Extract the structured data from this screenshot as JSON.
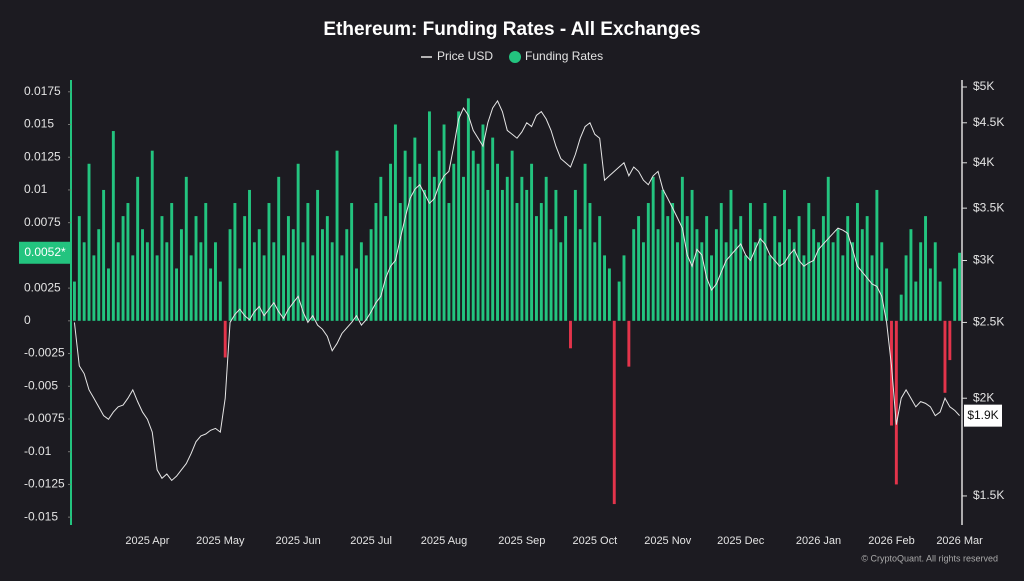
{
  "chart_data": {
    "type": "combo",
    "title": "Ethereum: Funding Rates - All Exchanges",
    "footer": "© CryptoQuant. All rights reserved",
    "categories": [
      null,
      null,
      null,
      null,
      null,
      null,
      null,
      null,
      null,
      null,
      null,
      null,
      null,
      null,
      null,
      "2025 Apr",
      null,
      null,
      null,
      null,
      null,
      null,
      null,
      null,
      null,
      null,
      null,
      null,
      null,
      null,
      "2025 May",
      null,
      null,
      null,
      null,
      null,
      null,
      null,
      null,
      null,
      null,
      null,
      null,
      null,
      null,
      null,
      "2025 Jun",
      null,
      null,
      null,
      null,
      null,
      null,
      null,
      null,
      null,
      null,
      null,
      null,
      null,
      null,
      "2025 Jul",
      null,
      null,
      null,
      null,
      null,
      null,
      null,
      null,
      null,
      null,
      null,
      null,
      null,
      null,
      "2025 Aug",
      null,
      null,
      null,
      null,
      null,
      null,
      null,
      null,
      null,
      null,
      null,
      null,
      null,
      null,
      null,
      "2025 Sep",
      null,
      null,
      null,
      null,
      null,
      null,
      null,
      null,
      null,
      null,
      null,
      null,
      null,
      null,
      "2025 Oct",
      null,
      null,
      null,
      null,
      null,
      null,
      null,
      null,
      null,
      null,
      null,
      null,
      null,
      null,
      "2025 Nov",
      null,
      null,
      null,
      null,
      null,
      null,
      null,
      null,
      null,
      null,
      null,
      null,
      null,
      null,
      "2025 Dec",
      null,
      null,
      null,
      null,
      null,
      null,
      null,
      null,
      null,
      null,
      null,
      null,
      null,
      null,
      null,
      "2026 Jan",
      null,
      null,
      null,
      null,
      null,
      null,
      null,
      null,
      null,
      null,
      null,
      null,
      null,
      null,
      "2026 Feb",
      null,
      null,
      null,
      null,
      null,
      null,
      null,
      null,
      null,
      null,
      null,
      null,
      null,
      "2026 Mar"
    ],
    "series": [
      {
        "name": "Price USD",
        "type": "line",
        "axis": "y2",
        "color": "#e6e6e6",
        "values": [
          2500,
          2200,
          2150,
          2050,
          2000,
          1950,
          1900,
          1880,
          1920,
          1950,
          1960,
          2000,
          2050,
          1980,
          1920,
          1880,
          1810,
          1620,
          1580,
          1600,
          1570,
          1590,
          1620,
          1650,
          1700,
          1760,
          1790,
          1800,
          1820,
          1830,
          1810,
          2000,
          2500,
          2560,
          2600,
          2550,
          2520,
          2580,
          2620,
          2550,
          2600,
          2650,
          2580,
          2530,
          2600,
          2650,
          2700,
          2580,
          2500,
          2550,
          2480,
          2450,
          2400,
          2300,
          2350,
          2420,
          2460,
          2500,
          2550,
          2480,
          2520,
          2580,
          2650,
          2700,
          2850,
          2950,
          3000,
          3200,
          3400,
          3600,
          3700,
          3750,
          3650,
          3550,
          3600,
          3750,
          3850,
          3900,
          4200,
          4550,
          4700,
          4600,
          4400,
          4300,
          4200,
          4500,
          4700,
          4800,
          4650,
          4400,
          4350,
          4300,
          4380,
          4500,
          4450,
          4600,
          4650,
          4550,
          4400,
          4200,
          4050,
          4000,
          3950,
          4100,
          4300,
          4450,
          4500,
          4350,
          4300,
          3800,
          3850,
          3900,
          3950,
          4000,
          3850,
          3950,
          3900,
          3800,
          3750,
          3850,
          3900,
          3700,
          3600,
          3500,
          3400,
          3300,
          3050,
          2950,
          3100,
          3050,
          2850,
          2750,
          2800,
          2900,
          3000,
          3050,
          3100,
          3150,
          3050,
          3000,
          3100,
          3200,
          3150,
          3050,
          3000,
          2950,
          2980,
          3050,
          3100,
          3000,
          2950,
          2980,
          3000,
          3100,
          3150,
          3200,
          3250,
          3300,
          3280,
          3250,
          3100,
          2950,
          2900,
          2850,
          2800,
          2780,
          2700,
          2500,
          2200,
          1850,
          2000,
          2050,
          2000,
          1950,
          1980,
          1970,
          1950,
          1900,
          1920,
          2000,
          1950,
          1930,
          1900
        ]
      },
      {
        "name": "Funding Rates",
        "type": "bar",
        "color": "#23c47f",
        "negative_color": "#e3344b",
        "values": [
          0.003,
          0.008,
          0.006,
          0.012,
          0.005,
          0.007,
          0.01,
          0.004,
          0.0145,
          0.006,
          0.008,
          0.009,
          0.005,
          0.011,
          0.007,
          0.006,
          0.013,
          0.005,
          0.008,
          0.006,
          0.009,
          0.004,
          0.007,
          0.011,
          0.005,
          0.008,
          0.006,
          0.009,
          0.004,
          0.006,
          0.003,
          -0.0028,
          0.007,
          0.009,
          0.004,
          0.008,
          0.01,
          0.006,
          0.007,
          0.005,
          0.009,
          0.006,
          0.011,
          0.005,
          0.008,
          0.007,
          0.012,
          0.006,
          0.009,
          0.005,
          0.01,
          0.007,
          0.008,
          0.006,
          0.013,
          0.005,
          0.007,
          0.009,
          0.004,
          0.006,
          0.005,
          0.007,
          0.009,
          0.011,
          0.008,
          0.012,
          0.015,
          0.009,
          0.013,
          0.011,
          0.014,
          0.012,
          0.01,
          0.016,
          0.011,
          0.013,
          0.015,
          0.009,
          0.012,
          0.016,
          0.011,
          0.017,
          0.013,
          0.012,
          0.015,
          0.01,
          0.014,
          0.012,
          0.01,
          0.011,
          0.013,
          0.009,
          0.011,
          0.01,
          0.012,
          0.008,
          0.009,
          0.011,
          0.007,
          0.01,
          0.006,
          0.008,
          -0.0021,
          0.01,
          0.007,
          0.012,
          0.009,
          0.006,
          0.008,
          0.005,
          0.004,
          -0.014,
          0.003,
          0.005,
          -0.0035,
          0.007,
          0.008,
          0.006,
          0.009,
          0.011,
          0.007,
          0.01,
          0.008,
          0.009,
          0.006,
          0.011,
          0.008,
          0.01,
          0.007,
          0.006,
          0.008,
          0.005,
          0.007,
          0.009,
          0.006,
          0.01,
          0.007,
          0.008,
          0.005,
          0.009,
          0.006,
          0.007,
          0.009,
          0.005,
          0.008,
          0.006,
          0.01,
          0.007,
          0.006,
          0.008,
          0.005,
          0.009,
          0.007,
          0.006,
          0.008,
          0.011,
          0.006,
          0.007,
          0.005,
          0.008,
          0.006,
          0.009,
          0.007,
          0.008,
          0.005,
          0.01,
          0.006,
          0.004,
          -0.008,
          -0.0125,
          0.002,
          0.005,
          0.007,
          0.003,
          0.006,
          0.008,
          0.004,
          0.006,
          0.003,
          -0.0055,
          -0.003,
          0.004,
          0.0052
        ]
      }
    ],
    "ylim": [
      -0.0156,
      0.0184
    ],
    "yticks": [
      -0.015,
      -0.0125,
      -0.01,
      -0.0075,
      -0.005,
      -0.0025,
      0,
      0.0025,
      0.005,
      0.0075,
      0.01,
      0.0125,
      0.015,
      0.0175
    ],
    "y2lim": [
      1377,
      5104
    ],
    "y2_log": true,
    "y2ticks": [
      {
        "value": 1500,
        "label": "$1.5K"
      },
      {
        "value": 2000,
        "label": "$2K"
      },
      {
        "value": 2500,
        "label": "$2.5K"
      },
      {
        "value": 3000,
        "label": "$3K"
      },
      {
        "value": 3500,
        "label": "$3.5K"
      },
      {
        "value": 4000,
        "label": "$4K"
      },
      {
        "value": 4500,
        "label": "$4.5K"
      },
      {
        "value": 5000,
        "label": "$5K"
      }
    ],
    "current_labels": {
      "funding": {
        "value": 0.0052,
        "label": "0.0052*"
      },
      "price": {
        "value": 1900,
        "label": "$1.9K"
      }
    }
  }
}
